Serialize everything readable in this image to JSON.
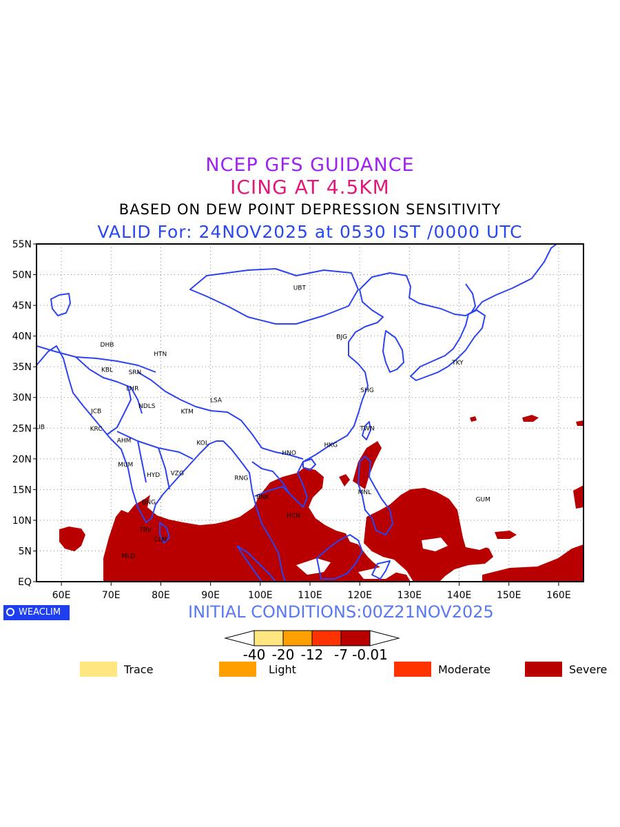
{
  "titles": {
    "line1": "NCEP GFS GUIDANCE",
    "line2": "ICING AT 4.5KM",
    "line3": "BASED ON DEW POINT DEPRESSION SENSITIVITY",
    "line4": "VALID For: 24NOV2025 at 0530 IST /0000 UTC"
  },
  "map": {
    "lon_range": [
      55,
      165
    ],
    "lat_range": [
      0,
      55
    ],
    "lon_ticks": [
      {
        "lon": 60,
        "label": "60E"
      },
      {
        "lon": 70,
        "label": "70E"
      },
      {
        "lon": 80,
        "label": "80E"
      },
      {
        "lon": 90,
        "label": "90E"
      },
      {
        "lon": 100,
        "label": "100E"
      },
      {
        "lon": 110,
        "label": "110E"
      },
      {
        "lon": 120,
        "label": "120E"
      },
      {
        "lon": 130,
        "label": "130E"
      },
      {
        "lon": 140,
        "label": "140E"
      },
      {
        "lon": 150,
        "label": "150E"
      },
      {
        "lon": 160,
        "label": "160E"
      }
    ],
    "lat_ticks": [
      {
        "lat": 0,
        "label": "EQ"
      },
      {
        "lat": 5,
        "label": "5N"
      },
      {
        "lat": 10,
        "label": "10N"
      },
      {
        "lat": 15,
        "label": "15N"
      },
      {
        "lat": 20,
        "label": "20N"
      },
      {
        "lat": 25,
        "label": "25N"
      },
      {
        "lat": 30,
        "label": "30N"
      },
      {
        "lat": 35,
        "label": "35N"
      },
      {
        "lat": 40,
        "label": "40N"
      },
      {
        "lat": 45,
        "label": "45N"
      },
      {
        "lat": 50,
        "label": "50N"
      },
      {
        "lat": 55,
        "label": "55N"
      }
    ],
    "grid": true,
    "cities": [
      {
        "code": "UBT",
        "lon": 107.9,
        "lat": 47.9
      },
      {
        "code": "BJG",
        "lon": 116.4,
        "lat": 39.9
      },
      {
        "code": "TKY",
        "lon": 139.7,
        "lat": 35.7
      },
      {
        "code": "DHB",
        "lon": 69.2,
        "lat": 38.6
      },
      {
        "code": "HTN",
        "lon": 79.9,
        "lat": 37.1
      },
      {
        "code": "KBL",
        "lon": 69.2,
        "lat": 34.5
      },
      {
        "code": "SRN",
        "lon": 74.8,
        "lat": 34.1
      },
      {
        "code": "LHR",
        "lon": 74.3,
        "lat": 31.5
      },
      {
        "code": "LSA",
        "lon": 91.1,
        "lat": 29.6
      },
      {
        "code": "SHG",
        "lon": 121.5,
        "lat": 31.2
      },
      {
        "code": "JCB",
        "lon": 67.0,
        "lat": 27.8
      },
      {
        "code": "NDLS",
        "lon": 77.2,
        "lat": 28.6
      },
      {
        "code": "KTM",
        "lon": 85.3,
        "lat": 27.7
      },
      {
        "code": "DUB",
        "lon": 55.3,
        "lat": 25.2
      },
      {
        "code": "KRC",
        "lon": 67.0,
        "lat": 24.9
      },
      {
        "code": "TWN",
        "lon": 121.5,
        "lat": 25.0
      },
      {
        "code": "AHM",
        "lon": 72.6,
        "lat": 23.0
      },
      {
        "code": "KOL",
        "lon": 88.4,
        "lat": 22.6
      },
      {
        "code": "HNO",
        "lon": 105.8,
        "lat": 21.0
      },
      {
        "code": "HKG",
        "lon": 114.2,
        "lat": 22.3
      },
      {
        "code": "MUM",
        "lon": 72.9,
        "lat": 19.1
      },
      {
        "code": "HYD",
        "lon": 78.5,
        "lat": 17.4
      },
      {
        "code": "VZG",
        "lon": 83.3,
        "lat": 17.7
      },
      {
        "code": "RNG",
        "lon": 96.2,
        "lat": 16.9
      },
      {
        "code": "MNL",
        "lon": 121.0,
        "lat": 14.6
      },
      {
        "code": "BNK",
        "lon": 100.5,
        "lat": 13.8
      },
      {
        "code": "GUM",
        "lon": 144.8,
        "lat": 13.4
      },
      {
        "code": "BNG",
        "lon": 77.6,
        "lat": 12.97
      },
      {
        "code": "HCN",
        "lon": 106.7,
        "lat": 10.8
      },
      {
        "code": "TRV",
        "lon": 76.9,
        "lat": 8.5
      },
      {
        "code": "CLM",
        "lon": 79.9,
        "lat": 6.9
      },
      {
        "code": "MLD",
        "lon": 73.5,
        "lat": 4.2
      }
    ]
  },
  "logo_text": "WEACLIM",
  "initial_conditions": "INITIAL CONDITIONS:00Z21NOV2025",
  "colorbar": {
    "bins": [
      {
        "color": "#ffe680"
      },
      {
        "color": "#ffa000"
      },
      {
        "color": "#ff3300"
      },
      {
        "color": "#b80000"
      }
    ],
    "tick_labels": [
      "-40",
      "-20",
      "-12",
      "-7",
      "-0.01"
    ]
  },
  "legend": [
    {
      "label": "Trace",
      "color": "#ffe680"
    },
    {
      "label": "Light",
      "color": "#ffa000"
    },
    {
      "label": "Moderate",
      "color": "#ff3300"
    },
    {
      "label": "Severe",
      "color": "#b80000"
    }
  ],
  "colors": {
    "coastline": "#2b43f0",
    "severe": "#b80000",
    "grid": "#888888"
  }
}
